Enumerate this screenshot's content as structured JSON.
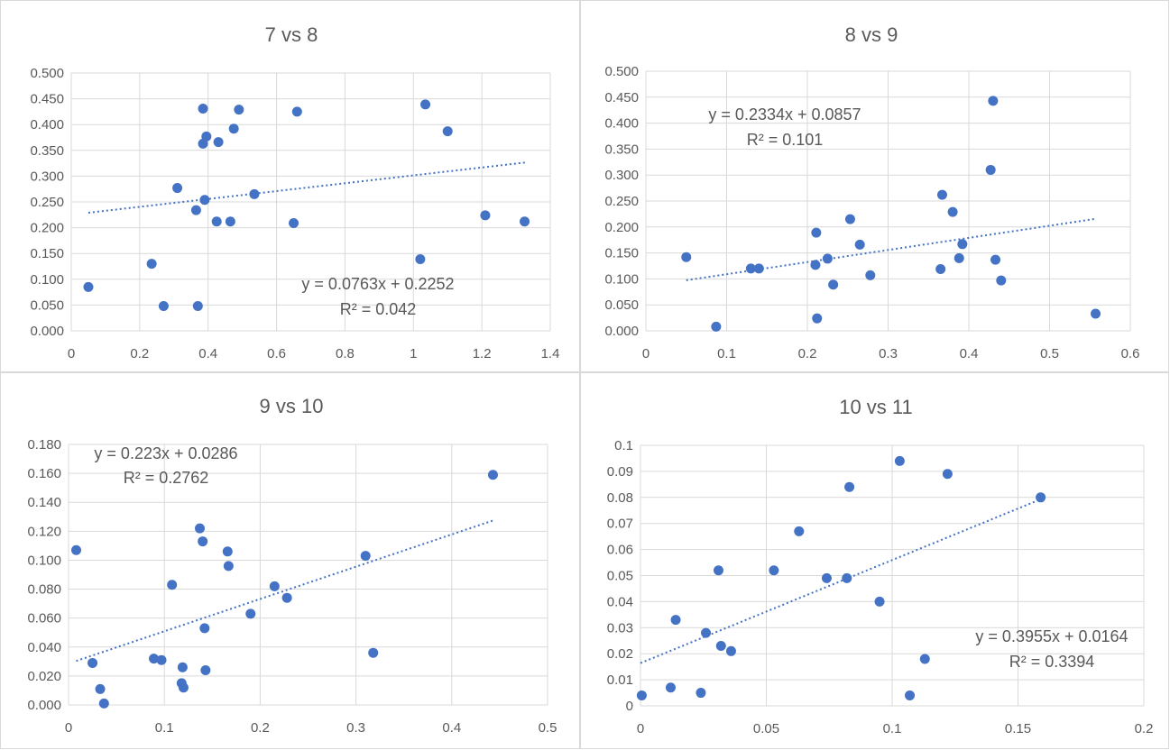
{
  "colors": {
    "point": "#4472c4",
    "trend": "#4472c4",
    "grid": "#d9d9d9",
    "text": "#595959"
  },
  "chart_data": [
    {
      "type": "scatter",
      "title": "7 vs 8",
      "xlim": [
        0,
        1.4
      ],
      "ylim": [
        0,
        0.5
      ],
      "x_ticks": [
        "0",
        "0.2",
        "0.4",
        "0.6",
        "0.8",
        "1",
        "1.2",
        "1.4"
      ],
      "y_ticks": [
        "0.000",
        "0.050",
        "0.100",
        "0.150",
        "0.200",
        "0.250",
        "0.300",
        "0.350",
        "0.400",
        "0.450",
        "0.500"
      ],
      "grid": true,
      "trendline": {
        "slope": 0.0763,
        "intercept": 0.2252,
        "x_range": [
          0.05,
          1.33
        ]
      },
      "equation": "y = 0.0763x + 0.2252",
      "r_squared": "R² = 0.042",
      "points": [
        [
          0.05,
          0.085
        ],
        [
          0.235,
          0.13
        ],
        [
          0.27,
          0.048
        ],
        [
          0.31,
          0.277
        ],
        [
          0.365,
          0.234
        ],
        [
          0.37,
          0.048
        ],
        [
          0.385,
          0.431
        ],
        [
          0.385,
          0.363
        ],
        [
          0.39,
          0.254
        ],
        [
          0.395,
          0.377
        ],
        [
          0.425,
          0.212
        ],
        [
          0.43,
          0.366
        ],
        [
          0.465,
          0.212
        ],
        [
          0.475,
          0.392
        ],
        [
          0.49,
          0.429
        ],
        [
          0.535,
          0.265
        ],
        [
          0.65,
          0.209
        ],
        [
          0.66,
          0.425
        ],
        [
          1.02,
          0.139
        ],
        [
          1.035,
          0.439
        ],
        [
          1.1,
          0.387
        ],
        [
          1.21,
          0.224
        ],
        [
          1.325,
          0.212
        ]
      ]
    },
    {
      "type": "scatter",
      "title": "8 vs 9",
      "xlim": [
        0,
        0.6
      ],
      "ylim": [
        0,
        0.5
      ],
      "x_ticks": [
        "0",
        "0.1",
        "0.2",
        "0.3",
        "0.4",
        "0.5",
        "0.6"
      ],
      "y_ticks": [
        "0.000",
        "0.050",
        "0.100",
        "0.150",
        "0.200",
        "0.250",
        "0.300",
        "0.350",
        "0.400",
        "0.450",
        "0.500"
      ],
      "grid": true,
      "trendline": {
        "slope": 0.2334,
        "intercept": 0.0857,
        "x_range": [
          0.05,
          0.557
        ]
      },
      "equation": "y = 0.2334x + 0.0857",
      "r_squared": "R² = 0.101",
      "points": [
        [
          0.05,
          0.142
        ],
        [
          0.087,
          0.008
        ],
        [
          0.13,
          0.12
        ],
        [
          0.14,
          0.12
        ],
        [
          0.21,
          0.127
        ],
        [
          0.211,
          0.189
        ],
        [
          0.212,
          0.024
        ],
        [
          0.225,
          0.139
        ],
        [
          0.232,
          0.089
        ],
        [
          0.253,
          0.215
        ],
        [
          0.265,
          0.166
        ],
        [
          0.278,
          0.107
        ],
        [
          0.365,
          0.119
        ],
        [
          0.367,
          0.262
        ],
        [
          0.38,
          0.229
        ],
        [
          0.388,
          0.14
        ],
        [
          0.392,
          0.167
        ],
        [
          0.427,
          0.31
        ],
        [
          0.43,
          0.443
        ],
        [
          0.433,
          0.137
        ],
        [
          0.44,
          0.097
        ],
        [
          0.557,
          0.033
        ]
      ]
    },
    {
      "type": "scatter",
      "title": "9 vs 10",
      "xlim": [
        0,
        0.5
      ],
      "ylim": [
        0,
        0.18
      ],
      "x_ticks": [
        "0",
        "0.1",
        "0.2",
        "0.3",
        "0.4",
        "0.5"
      ],
      "y_ticks": [
        "0.000",
        "0.020",
        "0.040",
        "0.060",
        "0.080",
        "0.100",
        "0.120",
        "0.140",
        "0.160",
        "0.180"
      ],
      "grid": true,
      "trendline": {
        "slope": 0.223,
        "intercept": 0.0286,
        "x_range": [
          0.008,
          0.443
        ]
      },
      "equation": "y = 0.223x + 0.0286",
      "r_squared": "R² = 0.2762",
      "points": [
        [
          0.008,
          0.107
        ],
        [
          0.025,
          0.029
        ],
        [
          0.033,
          0.011
        ],
        [
          0.037,
          0.001
        ],
        [
          0.089,
          0.032
        ],
        [
          0.097,
          0.031
        ],
        [
          0.108,
          0.083
        ],
        [
          0.118,
          0.015
        ],
        [
          0.119,
          0.026
        ],
        [
          0.12,
          0.012
        ],
        [
          0.137,
          0.122
        ],
        [
          0.14,
          0.113
        ],
        [
          0.142,
          0.053
        ],
        [
          0.143,
          0.024
        ],
        [
          0.166,
          0.106
        ],
        [
          0.167,
          0.096
        ],
        [
          0.19,
          0.063
        ],
        [
          0.215,
          0.082
        ],
        [
          0.228,
          0.074
        ],
        [
          0.31,
          0.103
        ],
        [
          0.318,
          0.036
        ],
        [
          0.443,
          0.159
        ]
      ]
    },
    {
      "type": "scatter",
      "title": "10 vs 11",
      "xlim": [
        0,
        0.2
      ],
      "ylim": [
        0,
        0.1
      ],
      "x_ticks": [
        "0",
        "0.05",
        "0.1",
        "0.15",
        "0.2"
      ],
      "y_ticks": [
        "0",
        "0.01",
        "0.02",
        "0.03",
        "0.04",
        "0.05",
        "0.06",
        "0.07",
        "0.08",
        "0.09",
        "0.1"
      ],
      "grid": true,
      "trendline": {
        "slope": 0.3955,
        "intercept": 0.0164,
        "x_range": [
          0,
          0.159
        ]
      },
      "equation": "y = 0.3955x + 0.0164",
      "r_squared": "R² = 0.3394",
      "points": [
        [
          0.0005,
          0.004
        ],
        [
          0.012,
          0.007
        ],
        [
          0.014,
          0.033
        ],
        [
          0.024,
          0.005
        ],
        [
          0.026,
          0.028
        ],
        [
          0.031,
          0.052
        ],
        [
          0.032,
          0.023
        ],
        [
          0.036,
          0.021
        ],
        [
          0.053,
          0.052
        ],
        [
          0.063,
          0.067
        ],
        [
          0.074,
          0.049
        ],
        [
          0.082,
          0.049
        ],
        [
          0.083,
          0.084
        ],
        [
          0.095,
          0.04
        ],
        [
          0.103,
          0.094
        ],
        [
          0.107,
          0.004
        ],
        [
          0.113,
          0.018
        ],
        [
          0.122,
          0.089
        ],
        [
          0.159,
          0.08
        ]
      ]
    }
  ]
}
